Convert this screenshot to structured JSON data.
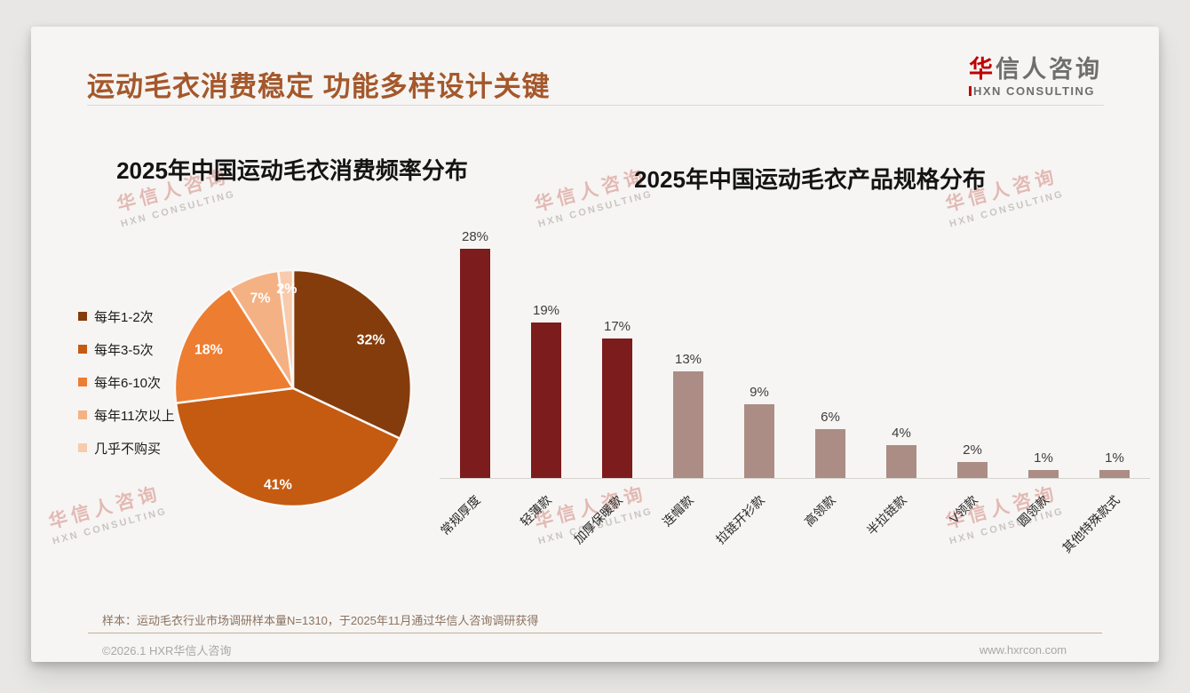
{
  "slide": {
    "title": "运动毛衣消费稳定 功能多样设计关键",
    "title_color": "#A4582B",
    "logo": {
      "cn_first": "华",
      "cn_rest": "信人咨询",
      "en": "HXN CONSULTING",
      "red": "#C00000"
    },
    "watermark": {
      "line1": "华信人咨询",
      "line2": "HXN CONSULTING"
    },
    "footnote": "样本：运动毛衣行业市场调研样本量N=1310，于2025年11月通过华信人咨询调研获得",
    "copyright": "©2026.1 HXR华信人咨询",
    "website": "www.hxrcon.com"
  },
  "chart_data": [
    {
      "type": "pie",
      "title": "2025年中国运动毛衣消费频率分布",
      "labels": [
        "每年1-2次",
        "每年3-5次",
        "每年6-10次",
        "每年11次以上",
        "几乎不购买"
      ],
      "values": [
        32,
        41,
        18,
        7,
        2
      ],
      "value_labels": [
        "32%",
        "41%",
        "18%",
        "7%",
        "2%"
      ],
      "unit": "%",
      "colors": [
        "#843C0C",
        "#C55A11",
        "#ED7D31",
        "#F4B183",
        "#F8CBAD"
      ],
      "legend_position": "left",
      "start_angle_deg": 0,
      "direction": "clockwise"
    },
    {
      "type": "bar",
      "title": "2025年中国运动毛衣产品规格分布",
      "categories": [
        "常规厚度",
        "轻薄款",
        "加厚保暖款",
        "连帽款",
        "拉链开衫款",
        "高领款",
        "半拉链款",
        "V领款",
        "圆领款",
        "其他特殊款式"
      ],
      "values": [
        28,
        19,
        17,
        13,
        9,
        6,
        4,
        2,
        1,
        1
      ],
      "value_labels": [
        "28%",
        "19%",
        "17%",
        "13%",
        "9%",
        "6%",
        "4%",
        "2%",
        "1%",
        "1%"
      ],
      "unit": "%",
      "bar_colors": [
        "#7C1C1C",
        "#7C1C1C",
        "#7C1C1C",
        "#AB8D85",
        "#AB8D85",
        "#AB8D85",
        "#AB8D85",
        "#AB8D85",
        "#AB8D85",
        "#AB8D85"
      ],
      "ylim": [
        0,
        30
      ],
      "grid": false,
      "x_label_rotation_deg": -45,
      "xlabel": "",
      "ylabel": ""
    }
  ]
}
